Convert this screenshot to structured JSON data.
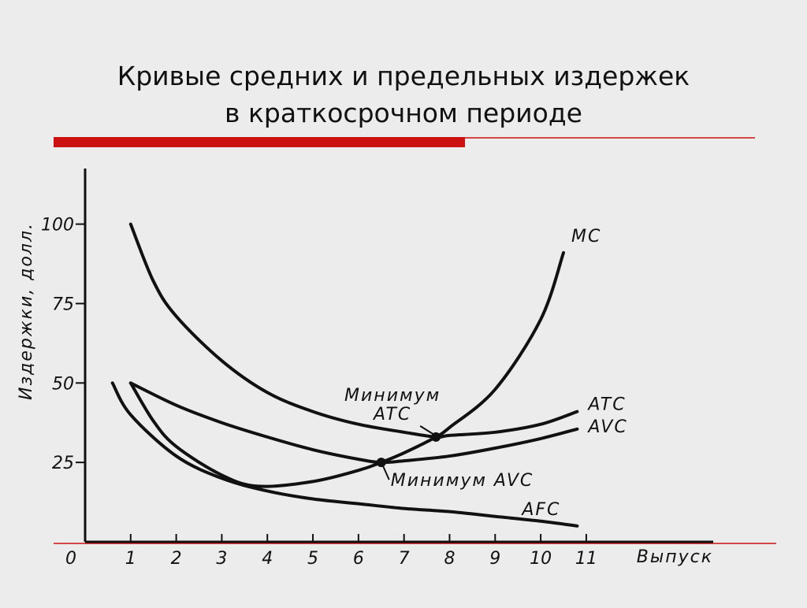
{
  "chart_data": {
    "type": "line",
    "title": [
      "Кривые средних и предельных издержек",
      "в краткосрочном периоде"
    ],
    "x_label": "Выпуск",
    "y_label": "Издержки, долл.",
    "xlim": [
      0,
      13.7
    ],
    "ylim": [
      0,
      117
    ],
    "xticks": [
      0,
      1,
      2,
      3,
      4,
      5,
      6,
      7,
      8,
      9,
      10,
      11
    ],
    "yticks": [
      25,
      50,
      75,
      100
    ],
    "color": "#111111",
    "series": [
      {
        "name": "MC",
        "x": [
          1,
          1.5,
          2,
          3,
          3.8,
          5,
          6,
          6.5,
          7,
          7.7,
          8,
          9,
          10,
          10.5
        ],
        "values": [
          50,
          38,
          30,
          21,
          17.5,
          19,
          22.5,
          25,
          28,
          33,
          36,
          48,
          70,
          91
        ]
      },
      {
        "name": "ATC",
        "x": [
          1,
          1.5,
          2,
          3,
          4,
          5,
          6,
          7,
          7.7,
          8,
          9,
          10,
          10.8
        ],
        "values": [
          100,
          82,
          71,
          57,
          47,
          41,
          37,
          34.5,
          33,
          33.5,
          34.5,
          37,
          41
        ]
      },
      {
        "name": "AVC",
        "x": [
          1,
          2,
          3,
          4,
          5,
          6,
          6.5,
          7,
          8,
          9,
          10,
          10.8
        ],
        "values": [
          50,
          43,
          37.5,
          33,
          29,
          26,
          25,
          25.5,
          27,
          29.5,
          32.5,
          35.5
        ]
      },
      {
        "name": "AFC",
        "x": [
          0.6,
          1,
          2,
          3,
          4,
          5,
          6,
          7,
          8,
          9,
          10,
          10.8
        ],
        "values": [
          50,
          40,
          27,
          20,
          16,
          13.5,
          12,
          10.5,
          9.5,
          8,
          6.5,
          5
        ]
      }
    ],
    "annotations": [
      {
        "lines": [
          "Минимум",
          "ATC"
        ],
        "x": 7.7,
        "y": 33
      },
      {
        "lines": [
          "Минимум AVC"
        ],
        "x": 6.5,
        "y": 25
      }
    ]
  }
}
